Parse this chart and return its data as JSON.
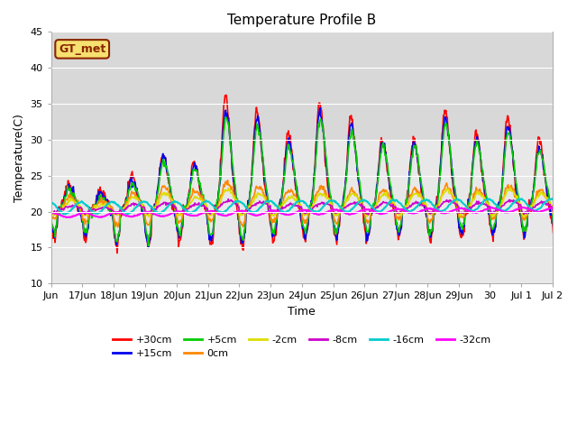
{
  "title": "Temperature Profile B",
  "xlabel": "Time",
  "ylabel": "Temperature(C)",
  "annotation": "GT_met",
  "ylim": [
    10,
    45
  ],
  "series_info": [
    {
      "label": "+30cm",
      "color": "#ff0000",
      "lw": 1.2
    },
    {
      "label": "+15cm",
      "color": "#0000ee",
      "lw": 1.2
    },
    {
      "label": "+5cm",
      "color": "#00cc00",
      "lw": 1.2
    },
    {
      "label": "0cm",
      "color": "#ff8800",
      "lw": 1.2
    },
    {
      "label": "-2cm",
      "color": "#dddd00",
      "lw": 1.2
    },
    {
      "label": "-8cm",
      "color": "#cc00cc",
      "lw": 1.2
    },
    {
      "label": "-16cm",
      "color": "#00cccc",
      "lw": 1.5
    },
    {
      "label": "-32cm",
      "color": "#ff00ff",
      "lw": 1.5
    }
  ],
  "xtick_labels": [
    "Jun",
    "17Jun",
    "18Jun",
    "19Jun",
    "20Jun",
    "21Jun",
    "22Jun",
    "23Jun",
    "24Jun",
    "25Jun",
    "26Jun",
    "27Jun",
    "28Jun",
    "29Jun",
    "30",
    "Jul 1",
    "Jul 2"
  ],
  "background_color": "#e8e8e8",
  "upper_band_color": "#d8d8d8",
  "upper_band": [
    30,
    45
  ],
  "lower_band": [
    10,
    30
  ],
  "lower_band_color": "#e8e8e8",
  "grid_color": "white",
  "title_fontsize": 11,
  "axis_fontsize": 9,
  "tick_fontsize": 8,
  "legend_ncol": 6
}
